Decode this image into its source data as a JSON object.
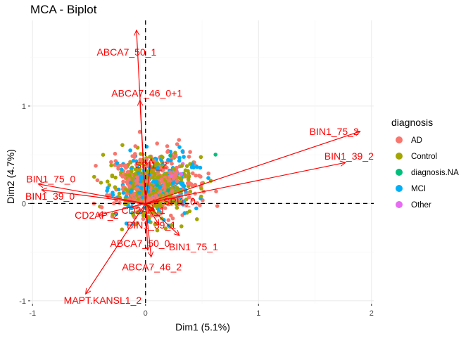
{
  "chart_data": {
    "type": "scatter",
    "title": "MCA - Biplot",
    "xlabel": "Dim1 (5.1%)",
    "ylabel": "Dim2 (4.7%)",
    "xlim": [
      -1.02,
      2.02
    ],
    "ylim": [
      -1.03,
      1.88
    ],
    "xticks": [
      -1,
      0,
      1,
      2
    ],
    "yticks": [
      -1,
      0,
      1
    ],
    "grid": true,
    "zero_lines": "dashed",
    "legend": {
      "title": "diagnosis",
      "position": "right",
      "items": [
        {
          "name": "AD",
          "color": "#F8766D"
        },
        {
          "name": "Control",
          "color": "#A3A500"
        },
        {
          "name": "diagnosis.NA",
          "color": "#00BF7D"
        },
        {
          "name": "MCI",
          "color": "#00B0F6"
        },
        {
          "name": "Other",
          "color": "#E76BF3"
        }
      ]
    },
    "arrow_color": "#FF0000",
    "variables": [
      {
        "label": "ABCA7_50_1",
        "x": -0.08,
        "y": 1.78
      },
      {
        "label": "ABCA7_46_0+1",
        "x": -0.05,
        "y": 1.06
      },
      {
        "label": "BIN1_75_2",
        "x": 1.9,
        "y": 0.74
      },
      {
        "label": "BIN1_39_2",
        "x": 1.77,
        "y": 0.42
      },
      {
        "label": "BIN1_75_0",
        "x": -0.95,
        "y": 0.2
      },
      {
        "label": "BIN1_39_0",
        "x": -0.92,
        "y": 0.14
      },
      {
        "label": "SPI1_2",
        "x": 0.05,
        "y": 0.46
      },
      {
        "label": "SPI1_0",
        "x": 0.12,
        "y": 0.02
      },
      {
        "label": "CD2AP_2",
        "x": -0.42,
        "y": -0.12
      },
      {
        "label": "CD2AP_1",
        "x": 0.08,
        "y": -0.07
      },
      {
        "label": "BIN1_39_1",
        "x": 0.12,
        "y": -0.22
      },
      {
        "label": "ABCA7_50_0",
        "x": 0.02,
        "y": -0.48
      },
      {
        "label": "BIN1_75_1",
        "x": 0.3,
        "y": -0.33
      },
      {
        "label": "ABCA7_46_2",
        "x": 0.05,
        "y": -0.55
      },
      {
        "label": "MAPT.KANSL1_2",
        "x": -0.53,
        "y": -0.93
      }
    ],
    "individuals_summary": "~900 points colored by diagnosis, concentrated x∈[-0.5,0.75], y∈[-0.5,0.9]"
  }
}
